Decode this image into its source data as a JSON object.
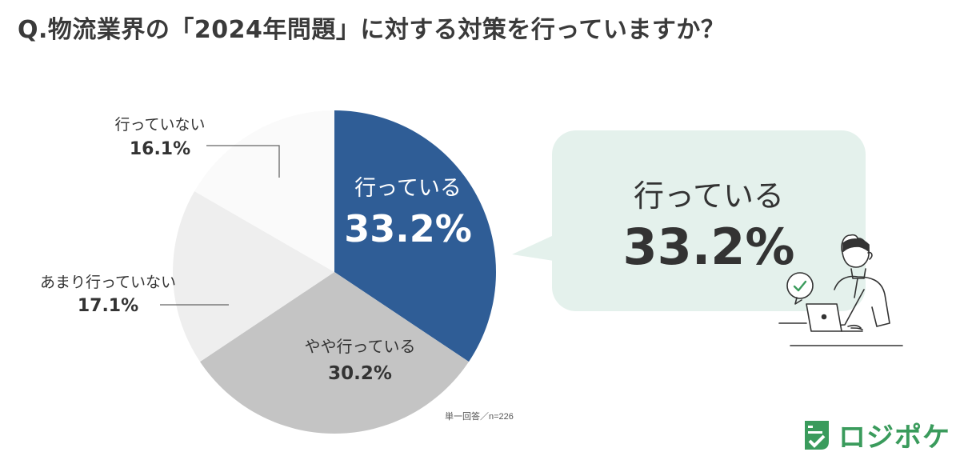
{
  "title": "Q.物流業界の「2024年問題」に対する対策を行っていますか？",
  "chart_data": {
    "type": "pie",
    "slices": [
      {
        "label": "行っている",
        "value": 33.2,
        "display": "33.2%",
        "color": "#2f5d96"
      },
      {
        "label": "やや行っている",
        "value": 30.2,
        "display": "30.2%",
        "color": "#c4c4c4"
      },
      {
        "label": "あまり行っていない",
        "value": 17.1,
        "display": "17.1%",
        "color": "#eeeeee"
      },
      {
        "label": "行っていない",
        "value": 16.1,
        "display": "16.1%",
        "color": "#fafafa"
      }
    ],
    "start": "12 o'clock",
    "direction": "clockwise"
  },
  "note": "単一回答／n=226",
  "callout": {
    "label": "行っている",
    "value": "33.2%"
  },
  "logo": {
    "text": "ロジポケ",
    "icon": "document-check-icon",
    "color": "#3a9b5c"
  }
}
